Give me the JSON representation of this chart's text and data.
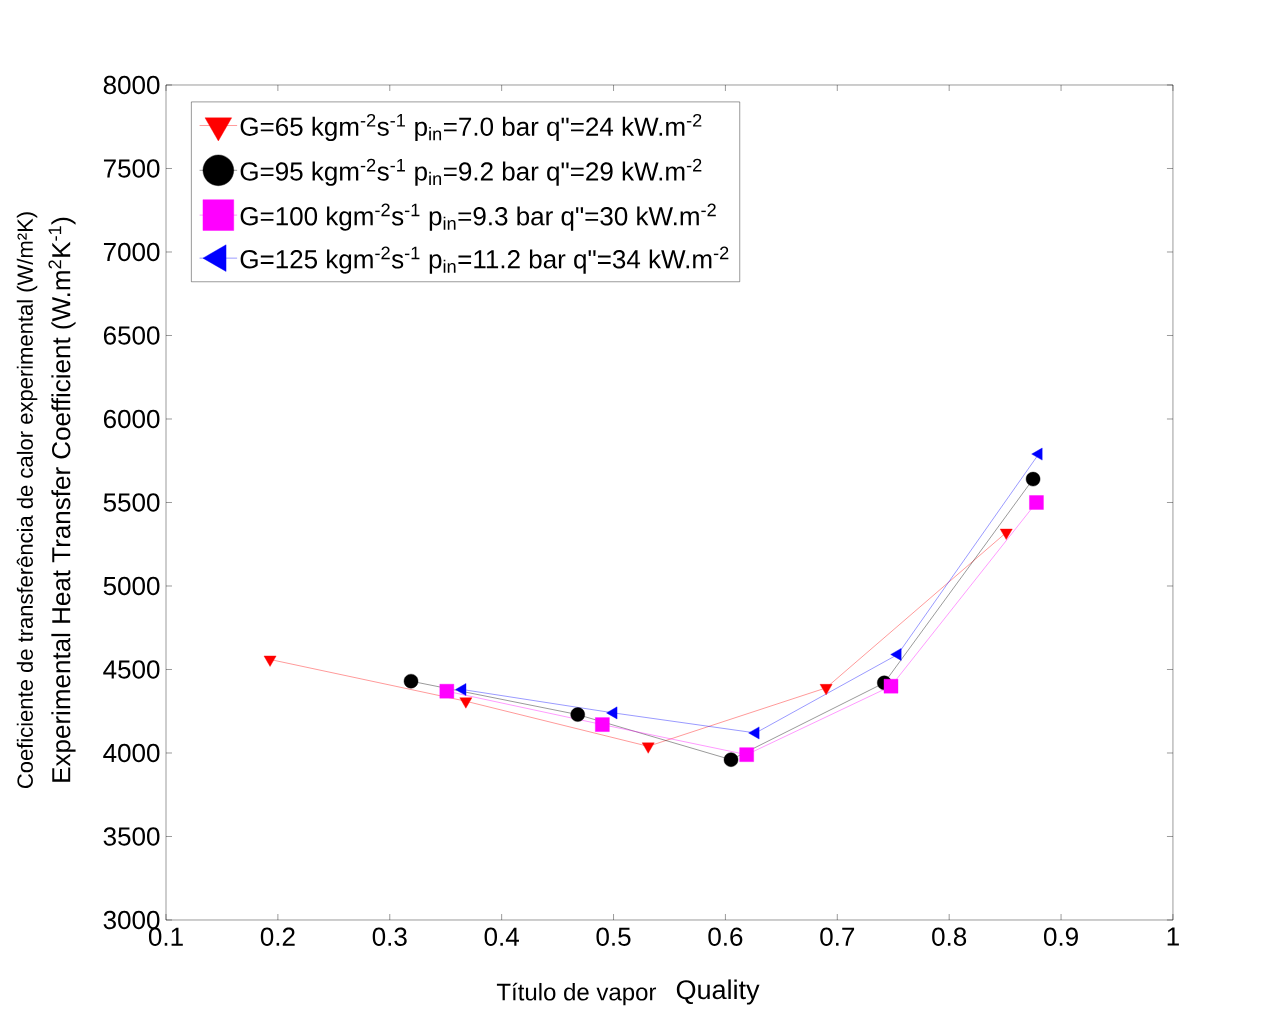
{
  "chart_data": {
    "type": "line",
    "xlabel": "Título de vapor",
    "ylabel": "Coeficiente de transferência de calor experimental (W/m²K)",
    "annotations": [
      "Experimental Heat Transfer Coefficient (W.m$^{2}$K$^{-1}$)",
      "Quality"
    ],
    "xlim": [
      0.1,
      1
    ],
    "xticks": [
      0.1,
      0.2,
      0.3,
      0.4,
      0.5,
      0.6,
      0.7,
      0.8,
      0.9,
      1
    ],
    "ylim": [
      3000,
      8000
    ],
    "yticks": [
      3000,
      3500,
      4000,
      4500,
      5000,
      5500,
      6000,
      6500,
      7000,
      7500,
      8000
    ],
    "grid": false,
    "legend": "top left",
    "line_style": "solid",
    "series": [
      {
        "name": "G=65 kgm$^{-2}$s$^{-1}$  p$_{in}$=7.0 bar  q\"=24 kW.m$^{-2}$",
        "color": "#ff0000",
        "marker": "triangle-down",
        "x": [
          0.193,
          0.368,
          0.531,
          0.69,
          0.851
        ],
        "values": [
          4560,
          4310,
          4040,
          4390,
          5320
        ]
      },
      {
        "name": "G=95 kgm$^{-2}$s$^{-1}$  p$_{in}$=9.2 bar  q\"=29 kW.m$^{-2}$",
        "color": "#000000",
        "marker": "circle",
        "x": [
          0.319,
          0.468,
          0.605,
          0.742,
          0.875
        ],
        "values": [
          4430,
          4230,
          3960,
          4420,
          5640
        ]
      },
      {
        "name": "G=100 kgm$^{-2}$s$^{-1}$  p$_{in}$=9.3 bar  q\"=30 kW.m$^{-2}$",
        "color": "#ff00ff",
        "marker": "square",
        "x": [
          0.351,
          0.49,
          0.619,
          0.748,
          0.878
        ],
        "values": [
          4370,
          4170,
          3990,
          4400,
          5500
        ]
      },
      {
        "name": "G=125 kgm$^{-2}$s$^{-1}$  p$_{in}$=11.2 bar  q\"=34 kW.m$^{-2}$",
        "color": "#0000ff",
        "marker": "triangle-left",
        "x": [
          0.365,
          0.5,
          0.627,
          0.754,
          0.88
        ],
        "values": [
          4380,
          4240,
          4120,
          4590,
          5790
        ]
      }
    ]
  }
}
